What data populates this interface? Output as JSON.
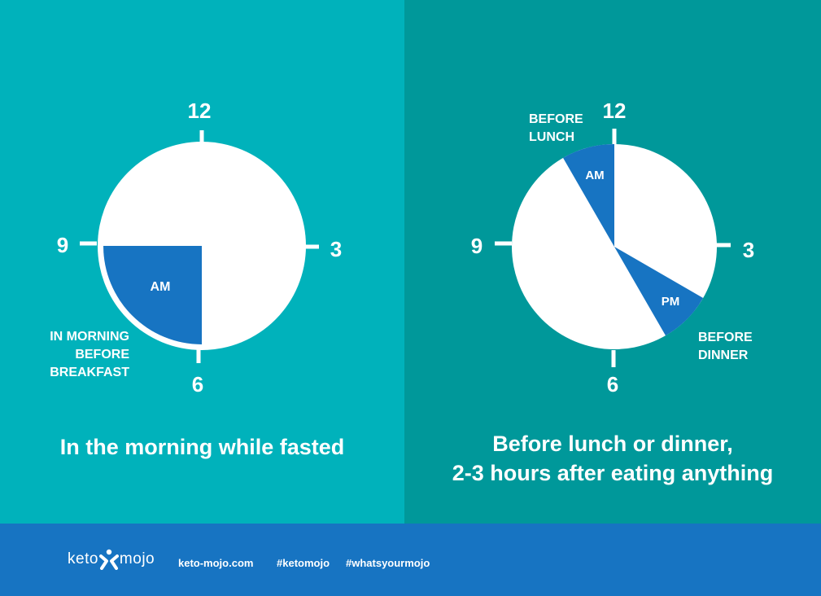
{
  "left_panel": {
    "clock": {
      "labels": {
        "n12": "12",
        "n3": "3",
        "n6": "6",
        "n9": "9"
      },
      "segments": [
        {
          "label": "AM",
          "start_hour": 6,
          "end_hour": 9,
          "color": "#1774c2"
        }
      ],
      "annotation": "IN MORNING\nBEFORE\nBREAKFAST"
    },
    "caption": "In the morning while fasted"
  },
  "right_panel": {
    "clock": {
      "labels": {
        "n12": "12",
        "n3": "3",
        "n6": "6",
        "n9": "9"
      },
      "segments": [
        {
          "label": "AM",
          "start_hour": 11,
          "end_hour": 12,
          "color": "#1774c2"
        },
        {
          "label": "PM",
          "start_hour": 4,
          "end_hour": 5,
          "color": "#1774c2"
        }
      ],
      "annotations": {
        "lunch": "BEFORE\nLUNCH",
        "dinner": "BEFORE\nDINNER"
      }
    },
    "caption": "Before lunch or dinner,\n2-3 hours after eating anything"
  },
  "footer": {
    "brand_left": "keto",
    "brand_right": "mojo",
    "links": [
      "keto-mojo.com",
      "#ketomojo",
      "#whatsyourmojo"
    ]
  },
  "colors": {
    "left_background": "#00b2bb",
    "right_background": "#00989a",
    "footer_background": "#1774c2",
    "segment": "#1774c2",
    "clock_face": "#ffffff"
  }
}
